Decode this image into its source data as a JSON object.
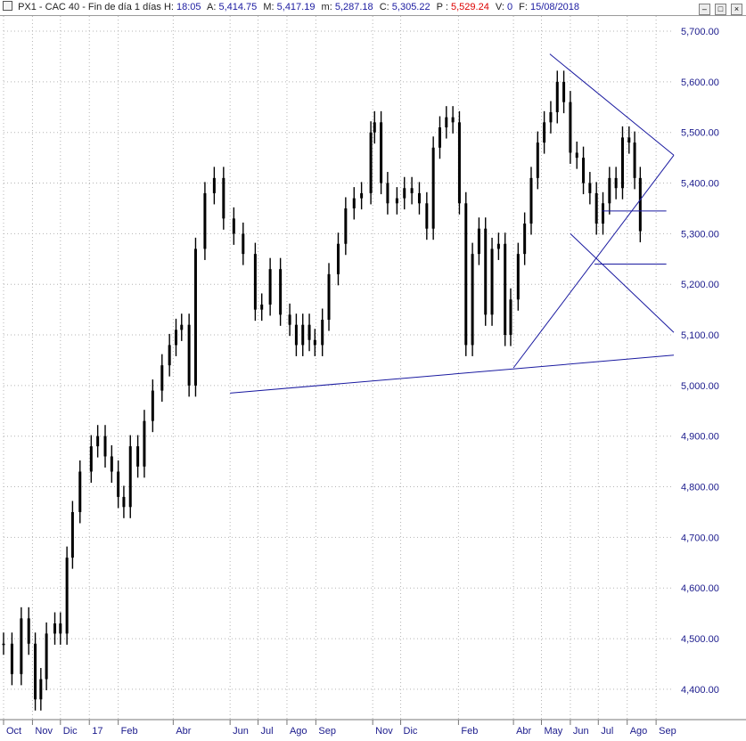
{
  "header": {
    "symbol": "PX1 - CAC 40 - Fin de día 1 días",
    "h_label": "H:",
    "h_value": "18:05",
    "a_label": "A:",
    "a_value": "5,414.75",
    "m_label": "M:",
    "m_value": "5,417.19",
    "min_label": "m:",
    "min_value": "5,287.18",
    "c_label": "C:",
    "c_value": "5,305.22",
    "p_label": "P :",
    "p_value": "5,529.24",
    "v_label": "V:",
    "v_value": "0",
    "f_label": "F:",
    "f_value": "15/08/2018"
  },
  "window_buttons": {
    "minimize": "–",
    "restore": "□",
    "close": "×"
  },
  "colors": {
    "candles": "#000000",
    "trendlines": "#1a1aa0",
    "axis_text": "#1a1a8c",
    "price_marker": "#dd0000",
    "grid": "#b4b4b4"
  },
  "chart_data": {
    "type": "candlestick",
    "ylim": [
      4340,
      5730
    ],
    "yticks": [
      "5,700.00",
      "5,600.00",
      "5,500.00",
      "5,400.00",
      "5,300.00",
      "5,200.00",
      "5,100.00",
      "5,000.00",
      "4,900.00",
      "4,800.00",
      "4,700.00",
      "4,600.00",
      "4,500.00",
      "4,400.00"
    ],
    "ytick_values": [
      5700,
      5600,
      5500,
      5400,
      5300,
      5200,
      5100,
      5000,
      4900,
      4800,
      4700,
      4600,
      4500,
      4400
    ],
    "x_start": "2016-10-01",
    "x_end": "2018-09-20",
    "xticks": [
      {
        "label": "Oct",
        "date": "2016-10-01"
      },
      {
        "label": "Nov",
        "date": "2016-11-01"
      },
      {
        "label": "Dic",
        "date": "2016-12-01"
      },
      {
        "label": "17",
        "date": "2017-01-01"
      },
      {
        "label": "Feb",
        "date": "2017-02-01"
      },
      {
        "label": "Abr",
        "date": "2017-04-01"
      },
      {
        "label": "Jun",
        "date": "2017-06-01"
      },
      {
        "label": "Jul",
        "date": "2017-07-01"
      },
      {
        "label": "Ago",
        "date": "2017-08-01"
      },
      {
        "label": "Sep",
        "date": "2017-09-01"
      },
      {
        "label": "Nov",
        "date": "2017-11-01"
      },
      {
        "label": "Dic",
        "date": "2017-12-01"
      },
      {
        "label": "Feb",
        "date": "2018-02-01"
      },
      {
        "label": "Abr",
        "date": "2018-04-01"
      },
      {
        "label": "May",
        "date": "2018-05-01"
      },
      {
        "label": "Jun",
        "date": "2018-06-01"
      },
      {
        "label": "Jul",
        "date": "2018-07-01"
      },
      {
        "label": "Ago",
        "date": "2018-08-01"
      },
      {
        "label": "Sep",
        "date": "2018-09-01"
      }
    ],
    "close_series": [
      {
        "date": "2016-10-01",
        "close": 4490
      },
      {
        "date": "2016-10-10",
        "close": 4430
      },
      {
        "date": "2016-10-20",
        "close": 4540
      },
      {
        "date": "2016-10-28",
        "close": 4490
      },
      {
        "date": "2016-11-04",
        "close": 4380
      },
      {
        "date": "2016-11-10",
        "close": 4420
      },
      {
        "date": "2016-11-16",
        "close": 4510
      },
      {
        "date": "2016-11-25",
        "close": 4530
      },
      {
        "date": "2016-12-01",
        "close": 4510
      },
      {
        "date": "2016-12-08",
        "close": 4660
      },
      {
        "date": "2016-12-14",
        "close": 4750
      },
      {
        "date": "2016-12-22",
        "close": 4830
      },
      {
        "date": "2017-01-03",
        "close": 4880
      },
      {
        "date": "2017-01-10",
        "close": 4900
      },
      {
        "date": "2017-01-18",
        "close": 4860
      },
      {
        "date": "2017-01-25",
        "close": 4830
      },
      {
        "date": "2017-02-01",
        "close": 4780
      },
      {
        "date": "2017-02-07",
        "close": 4760
      },
      {
        "date": "2017-02-14",
        "close": 4880
      },
      {
        "date": "2017-02-22",
        "close": 4840
      },
      {
        "date": "2017-03-01",
        "close": 4930
      },
      {
        "date": "2017-03-10",
        "close": 4990
      },
      {
        "date": "2017-03-20",
        "close": 5040
      },
      {
        "date": "2017-03-28",
        "close": 5080
      },
      {
        "date": "2017-04-04",
        "close": 5110
      },
      {
        "date": "2017-04-10",
        "close": 5120
      },
      {
        "date": "2017-04-18",
        "close": 5000
      },
      {
        "date": "2017-04-25",
        "close": 5270
      },
      {
        "date": "2017-05-05",
        "close": 5380
      },
      {
        "date": "2017-05-15",
        "close": 5410
      },
      {
        "date": "2017-05-25",
        "close": 5330
      },
      {
        "date": "2017-06-05",
        "close": 5300
      },
      {
        "date": "2017-06-15",
        "close": 5260
      },
      {
        "date": "2017-06-28",
        "close": 5150
      },
      {
        "date": "2017-07-05",
        "close": 5160
      },
      {
        "date": "2017-07-14",
        "close": 5230
      },
      {
        "date": "2017-07-25",
        "close": 5140
      },
      {
        "date": "2017-08-04",
        "close": 5120
      },
      {
        "date": "2017-08-11",
        "close": 5080
      },
      {
        "date": "2017-08-18",
        "close": 5120
      },
      {
        "date": "2017-08-25",
        "close": 5090
      },
      {
        "date": "2017-08-31",
        "close": 5080
      },
      {
        "date": "2017-09-08",
        "close": 5130
      },
      {
        "date": "2017-09-15",
        "close": 5220
      },
      {
        "date": "2017-09-25",
        "close": 5280
      },
      {
        "date": "2017-10-03",
        "close": 5350
      },
      {
        "date": "2017-10-12",
        "close": 5370
      },
      {
        "date": "2017-10-20",
        "close": 5380
      },
      {
        "date": "2017-10-30",
        "close": 5500
      },
      {
        "date": "2017-11-03",
        "close": 5520
      },
      {
        "date": "2017-11-10",
        "close": 5400
      },
      {
        "date": "2017-11-17",
        "close": 5360
      },
      {
        "date": "2017-11-27",
        "close": 5370
      },
      {
        "date": "2017-12-05",
        "close": 5390
      },
      {
        "date": "2017-12-13",
        "close": 5380
      },
      {
        "date": "2017-12-21",
        "close": 5360
      },
      {
        "date": "2017-12-29",
        "close": 5310
      },
      {
        "date": "2018-01-05",
        "close": 5470
      },
      {
        "date": "2018-01-12",
        "close": 5510
      },
      {
        "date": "2018-01-19",
        "close": 5530
      },
      {
        "date": "2018-01-26",
        "close": 5520
      },
      {
        "date": "2018-02-02",
        "close": 5360
      },
      {
        "date": "2018-02-09",
        "close": 5080
      },
      {
        "date": "2018-02-16",
        "close": 5260
      },
      {
        "date": "2018-02-23",
        "close": 5310
      },
      {
        "date": "2018-03-02",
        "close": 5140
      },
      {
        "date": "2018-03-09",
        "close": 5270
      },
      {
        "date": "2018-03-16",
        "close": 5280
      },
      {
        "date": "2018-03-23",
        "close": 5100
      },
      {
        "date": "2018-03-29",
        "close": 5170
      },
      {
        "date": "2018-04-06",
        "close": 5260
      },
      {
        "date": "2018-04-13",
        "close": 5320
      },
      {
        "date": "2018-04-20",
        "close": 5410
      },
      {
        "date": "2018-04-27",
        "close": 5480
      },
      {
        "date": "2018-05-04",
        "close": 5520
      },
      {
        "date": "2018-05-11",
        "close": 5540
      },
      {
        "date": "2018-05-18",
        "close": 5600
      },
      {
        "date": "2018-05-25",
        "close": 5560
      },
      {
        "date": "2018-06-01",
        "close": 5460
      },
      {
        "date": "2018-06-08",
        "close": 5450
      },
      {
        "date": "2018-06-15",
        "close": 5400
      },
      {
        "date": "2018-06-22",
        "close": 5380
      },
      {
        "date": "2018-06-29",
        "close": 5320
      },
      {
        "date": "2018-07-06",
        "close": 5360
      },
      {
        "date": "2018-07-13",
        "close": 5410
      },
      {
        "date": "2018-07-20",
        "close": 5390
      },
      {
        "date": "2018-07-27",
        "close": 5490
      },
      {
        "date": "2018-08-03",
        "close": 5480
      },
      {
        "date": "2018-08-09",
        "close": 5410
      },
      {
        "date": "2018-08-15",
        "close": 5305
      }
    ],
    "trendlines": [
      {
        "from": {
          "date": "2017-06-01",
          "price": 4985
        },
        "to": {
          "date": "2018-09-20",
          "price": 5060
        }
      },
      {
        "from": {
          "date": "2018-04-01",
          "price": 5035
        },
        "to": {
          "date": "2018-09-20",
          "price": 5455
        }
      },
      {
        "from": {
          "date": "2018-05-10",
          "price": 5655
        },
        "to": {
          "date": "2018-09-20",
          "price": 5455
        }
      },
      {
        "from": {
          "date": "2018-06-01",
          "price": 5300
        },
        "to": {
          "date": "2018-09-20",
          "price": 5105
        }
      },
      {
        "from": {
          "date": "2018-06-27",
          "price": 5240
        },
        "to": {
          "date": "2018-09-12",
          "price": 5240
        }
      },
      {
        "from": {
          "date": "2018-07-05",
          "price": 5345
        },
        "to": {
          "date": "2018-09-12",
          "price": 5345
        }
      }
    ]
  }
}
